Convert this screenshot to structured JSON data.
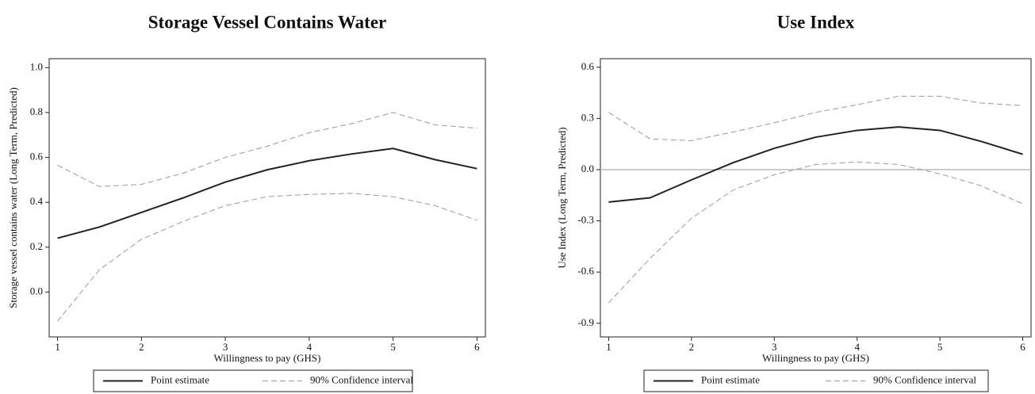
{
  "chart_data": [
    {
      "type": "line",
      "title": "Storage Vessel Contains Water",
      "x_label": "Willingness to pay (GHS)",
      "y_label": "Storage vessel contains water (Long Term, Predicted)",
      "x": [
        1,
        1.5,
        2,
        2.5,
        3,
        3.5,
        4,
        4.5,
        5,
        5.5,
        6
      ],
      "series": [
        {
          "name": "Point estimate",
          "color": "#222222",
          "values": [
            0.24,
            0.29,
            0.355,
            0.42,
            0.49,
            0.545,
            0.585,
            0.615,
            0.64,
            0.59,
            0.55
          ]
        },
        {
          "name": "90% Confidence interval",
          "color": "#999999",
          "upper": [
            0.565,
            0.47,
            0.48,
            0.53,
            0.6,
            0.65,
            0.71,
            0.75,
            0.8,
            0.745,
            0.73
          ],
          "lower": [
            -0.13,
            0.1,
            0.235,
            0.315,
            0.385,
            0.425,
            0.435,
            0.44,
            0.425,
            0.385,
            0.32
          ]
        }
      ],
      "xlim": [
        0.9,
        6.1
      ],
      "xticks": [
        1,
        2,
        3,
        4,
        5,
        6
      ],
      "ylim": [
        -0.2,
        1.04
      ],
      "yticks": [
        {
          "value": 0,
          "label": "0.0"
        },
        0.2,
        0.4,
        0.6,
        0.8,
        {
          "value": 1,
          "label": "1.0"
        }
      ],
      "zero_line": false,
      "legend": "bottom"
    },
    {
      "type": "line",
      "title": "Use Index",
      "x_label": "Willingness to pay (GHS)",
      "y_label": "Use Index (Long Term, Predicted)",
      "x": [
        1,
        1.5,
        2,
        2.5,
        3,
        3.5,
        4,
        4.5,
        5,
        5.5,
        6
      ],
      "series": [
        {
          "name": "Point estimate",
          "color": "#222222",
          "values": [
            -0.19,
            -0.165,
            -0.06,
            0.04,
            0.125,
            0.19,
            0.23,
            0.25,
            0.23,
            0.165,
            0.09
          ]
        },
        {
          "name": "90% Confidence interval",
          "color": "#999999",
          "upper": [
            0.335,
            0.18,
            0.17,
            0.22,
            0.275,
            0.335,
            0.38,
            0.43,
            0.43,
            0.39,
            0.375
          ],
          "lower": [
            -0.78,
            -0.52,
            -0.285,
            -0.12,
            -0.03,
            0.03,
            0.045,
            0.03,
            -0.025,
            -0.095,
            -0.2
          ]
        }
      ],
      "xlim": [
        0.9,
        6.1
      ],
      "xticks": [
        1,
        2,
        3,
        4,
        5,
        6
      ],
      "ylim": [
        -0.98,
        0.65
      ],
      "yticks": [
        -0.9,
        -0.6,
        -0.3,
        {
          "value": 0,
          "label": "0.0"
        },
        0.3,
        0.6
      ],
      "zero_line": true,
      "legend": "bottom"
    }
  ]
}
